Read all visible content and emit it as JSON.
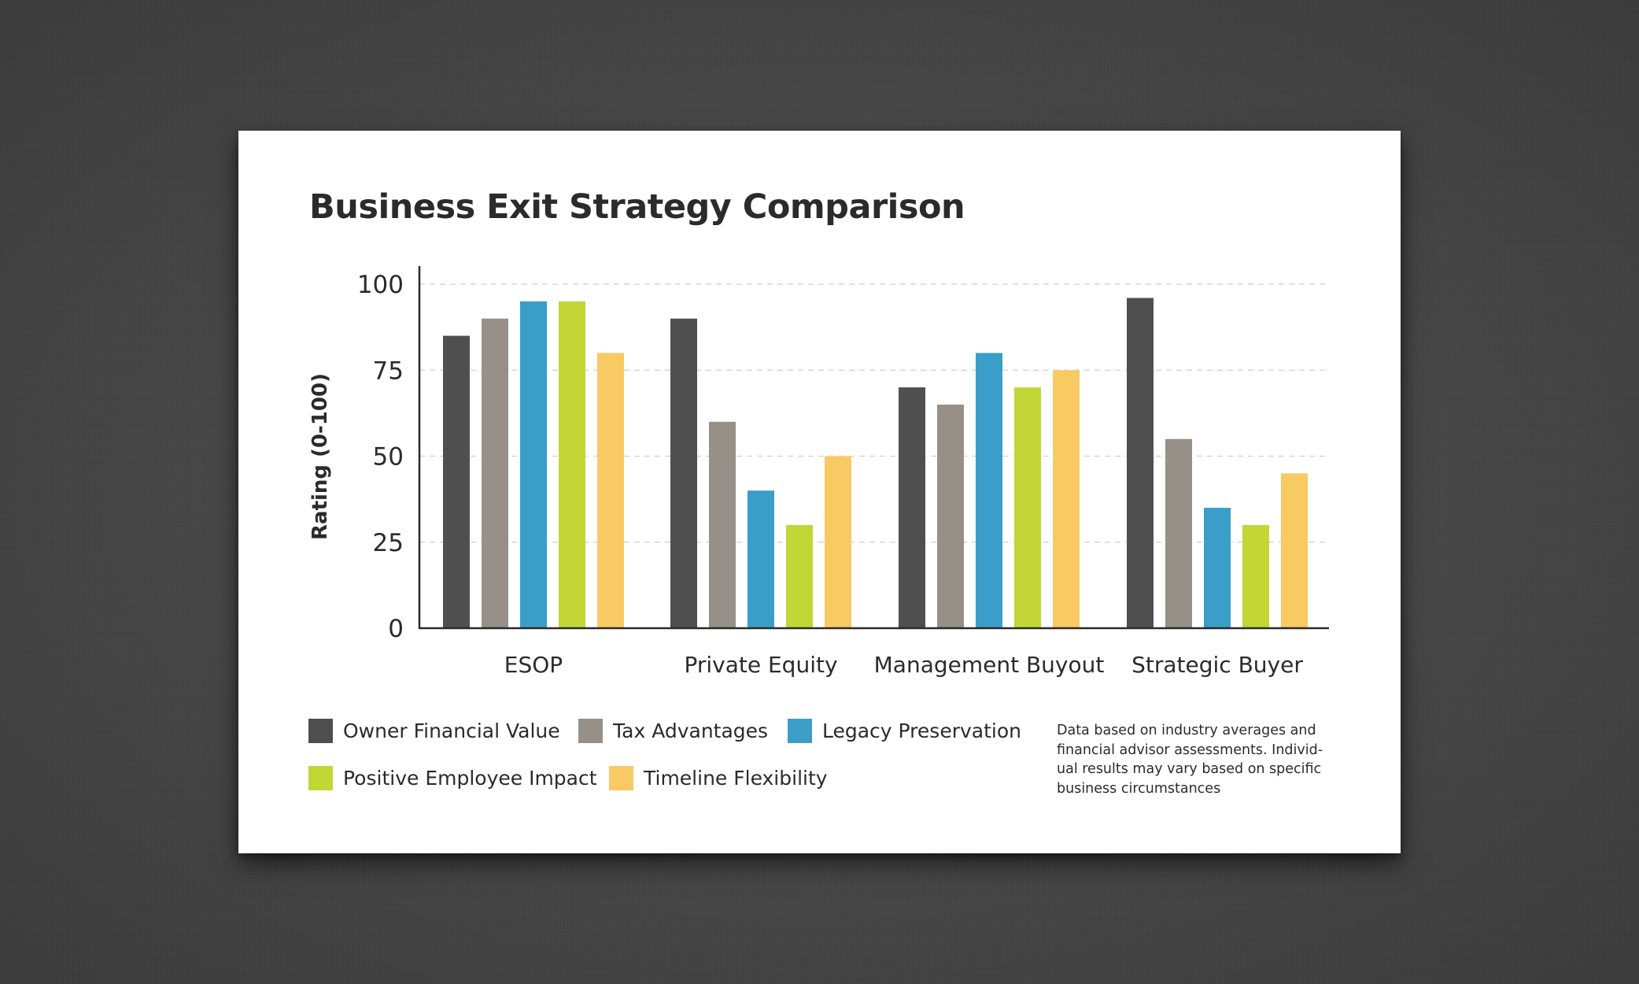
{
  "colors": {
    "axis": "#2b2b2b",
    "grid": "#d6d6d6",
    "text": "#2b2b2b"
  },
  "chart_data": {
    "type": "bar",
    "title": "Business Exit Strategy Comparison",
    "xlabel": "",
    "ylabel": "Rating (0-100)",
    "ylim": [
      0,
      100
    ],
    "yticks": [
      0,
      25,
      50,
      75,
      100
    ],
    "ytick_labels": [
      "0",
      "25",
      "50",
      "75",
      "100"
    ],
    "grid": true,
    "categories": [
      "ESOP",
      "Private Equity",
      "Management Buyout",
      "Strategic Buyer"
    ],
    "series": [
      {
        "name": "Owner Financial Value",
        "color": "#4f4f4f",
        "values": [
          85,
          90,
          70,
          96
        ]
      },
      {
        "name": "Tax Advantages",
        "color": "#969089",
        "values": [
          90,
          60,
          65,
          55
        ]
      },
      {
        "name": "Legacy Preservation",
        "color": "#3a9ec8",
        "values": [
          95,
          40,
          80,
          35
        ]
      },
      {
        "name": "Positive Employee Impact",
        "color": "#c2d636",
        "values": [
          95,
          30,
          70,
          30
        ]
      },
      {
        "name": "Timeline Flexibility",
        "color": "#f8ca63",
        "values": [
          80,
          50,
          75,
          45
        ]
      }
    ],
    "legend_position": "bottom-left"
  },
  "footnote": {
    "lines": [
      "Data based on industry averages and",
      "financial advisor assessments. Individ-",
      "ual results may vary based on specific",
      "business circumstances"
    ]
  }
}
